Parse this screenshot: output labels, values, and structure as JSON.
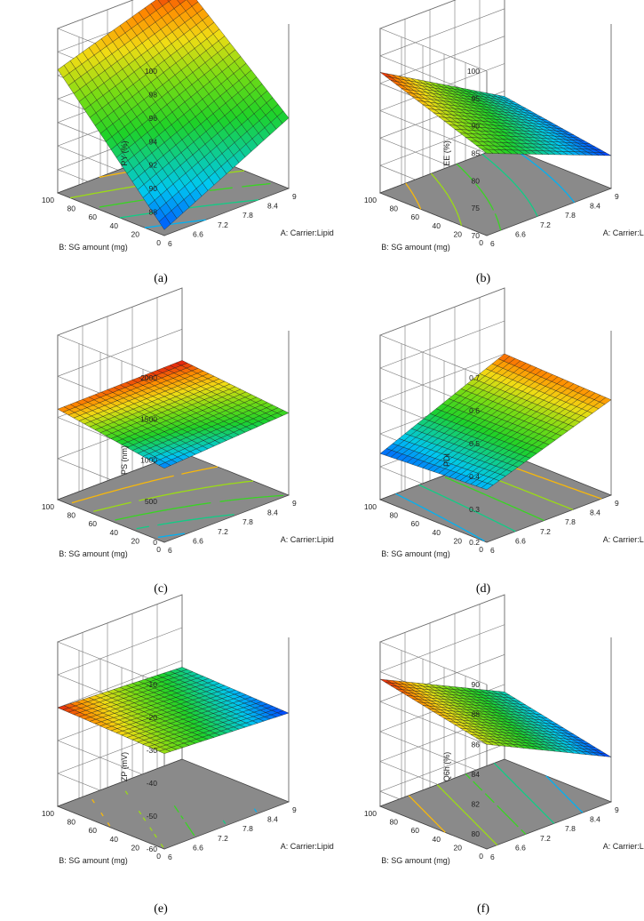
{
  "figure": {
    "panels": [
      {
        "label": "(a)",
        "zlabel": "PY (%)",
        "xlabel": "A: Carrier:Lipid",
        "ylabel": "B: SG amount (mg)"
      },
      {
        "label": "(b)",
        "zlabel": "EE (%)",
        "xlabel": "A: Carrier:Lipid",
        "ylabel": "B: SG amount (mg)"
      },
      {
        "label": "(c)",
        "zlabel": "PS (nm)",
        "xlabel": "A: Carrier:Lipid",
        "ylabel": "B: SG amount (mg)"
      },
      {
        "label": "(d)",
        "zlabel": "PDI",
        "xlabel": "A: Carrier:Lipid",
        "ylabel": "B: SG amount (mg)"
      },
      {
        "label": "(e)",
        "zlabel": "ZP (mV)",
        "xlabel": "A: Carrier:Lipid",
        "ylabel": "B: SG amount (mg)"
      },
      {
        "label": "(f)",
        "zlabel": "Q6h (%)",
        "xlabel": "A: Carrier:Lipid",
        "ylabel": "B: SG amount (mg)"
      }
    ]
  },
  "chart_data": [
    {
      "type": "surface",
      "title": "",
      "xlabel": "A: Carrier:Lipid",
      "ylabel": "B: SG amount (mg)",
      "zlabel": "PY (%)",
      "x_ticks": [
        "6",
        "6.6",
        "7.2",
        "7.8",
        "8.4",
        "9"
      ],
      "y_ticks": [
        "0",
        "20",
        "40",
        "60",
        "80",
        "100"
      ],
      "z_ticks": [
        "88",
        "90",
        "92",
        "94",
        "96",
        "98",
        "100"
      ],
      "xlim": [
        6,
        9
      ],
      "ylim": [
        0,
        100
      ],
      "zlim": [
        86,
        100
      ],
      "corner_values": {
        "x6_y0": 86.5,
        "x9_y0": 92.0,
        "x6_y100": 96.5,
        "x9_y100": 100.0
      },
      "contour_floor": "#8a8a8a",
      "grid": true
    },
    {
      "type": "surface",
      "title": "",
      "xlabel": "A: Carrier:Lipid",
      "ylabel": "B: SG amount (mg)",
      "zlabel": "EE (%)",
      "x_ticks": [
        "6",
        "6.6",
        "7.2",
        "7.8",
        "8.4",
        "9"
      ],
      "y_ticks": [
        "0",
        "20",
        "40",
        "60",
        "80",
        "100"
      ],
      "z_ticks": [
        "70",
        "75",
        "80",
        "85",
        "90",
        "95",
        "100"
      ],
      "xlim": [
        6,
        9
      ],
      "ylim": [
        0,
        100
      ],
      "zlim": [
        70,
        100
      ],
      "corner_values": {
        "x6_y0": 85.0,
        "x9_y0": 76.0,
        "x6_y100": 92.0,
        "x9_y100": 79.0
      },
      "contour_floor": "#8a8a8a",
      "grid": true
    },
    {
      "type": "surface",
      "title": "",
      "xlabel": "A: Carrier:Lipid",
      "ylabel": "B: SG amount (mg)",
      "zlabel": "PS (nm)",
      "x_ticks": [
        "6",
        "6.6",
        "7.2",
        "7.8",
        "8.4",
        "9"
      ],
      "y_ticks": [
        "0",
        "20",
        "40",
        "60",
        "80",
        "100"
      ],
      "z_ticks": [
        "0",
        "500",
        "1000",
        "1500",
        "2000"
      ],
      "xlim": [
        6,
        9
      ],
      "ylim": [
        0,
        100
      ],
      "zlim": [
        0,
        2000
      ],
      "corner_values": {
        "x6_y0": 900,
        "x9_y0": 1000,
        "x6_y100": 1100,
        "x9_y100": 1120
      },
      "contour_floor": "#8a8a8a",
      "grid": true
    },
    {
      "type": "surface",
      "title": "",
      "xlabel": "A: Carrier:Lipid",
      "ylabel": "B: SG amount (mg)",
      "zlabel": "PDI",
      "x_ticks": [
        "6",
        "6.6",
        "7.2",
        "7.8",
        "8.4",
        "9"
      ],
      "y_ticks": [
        "0",
        "20",
        "40",
        "60",
        "80",
        "100"
      ],
      "z_ticks": [
        "0.2",
        "0.3",
        "0.4",
        "0.5",
        "0.6",
        "0.7"
      ],
      "xlim": [
        6,
        9
      ],
      "ylim": [
        0,
        100
      ],
      "zlim": [
        0.2,
        0.7
      ],
      "corner_values": {
        "x6_y0": 0.36,
        "x9_y0": 0.49,
        "x6_y100": 0.34,
        "x9_y100": 0.5
      },
      "contour_floor": "#8a8a8a",
      "grid": true
    },
    {
      "type": "surface",
      "title": "",
      "xlabel": "A: Carrier:Lipid",
      "ylabel": "B: SG amount (mg)",
      "zlabel": "ZP (mV)",
      "x_ticks": [
        "6",
        "6.6",
        "7.2",
        "7.8",
        "8.4",
        "9"
      ],
      "y_ticks": [
        "0",
        "20",
        "40",
        "60",
        "80",
        "100"
      ],
      "z_ticks": [
        "-60",
        "-50",
        "-40",
        "-30",
        "-20",
        "-10"
      ],
      "xlim": [
        6,
        9
      ],
      "ylim": [
        0,
        100
      ],
      "zlim": [
        -60,
        -10
      ],
      "corner_values": {
        "x6_y0": -31,
        "x9_y0": -33,
        "x6_y100": -30,
        "x9_y100": -32
      },
      "contour_floor": "#8a8a8a",
      "grid": true
    },
    {
      "type": "surface",
      "title": "",
      "xlabel": "A: Carrier:Lipid",
      "ylabel": "B: SG amount (mg)",
      "zlabel": "Q6h (%)",
      "x_ticks": [
        "6",
        "6.6",
        "7.2",
        "7.8",
        "8.4",
        "9"
      ],
      "y_ticks": [
        "0",
        "20",
        "40",
        "60",
        "80",
        "100"
      ],
      "z_ticks": [
        "80",
        "82",
        "84",
        "86",
        "88",
        "90"
      ],
      "xlim": [
        6,
        9
      ],
      "ylim": [
        0,
        100
      ],
      "zlim": [
        79,
        90
      ],
      "corner_values": {
        "x6_y0": 86.0,
        "x9_y0": 82.0,
        "x6_y100": 87.5,
        "x9_y100": 83.5
      },
      "contour_floor": "#8a8a8a",
      "grid": true
    }
  ]
}
